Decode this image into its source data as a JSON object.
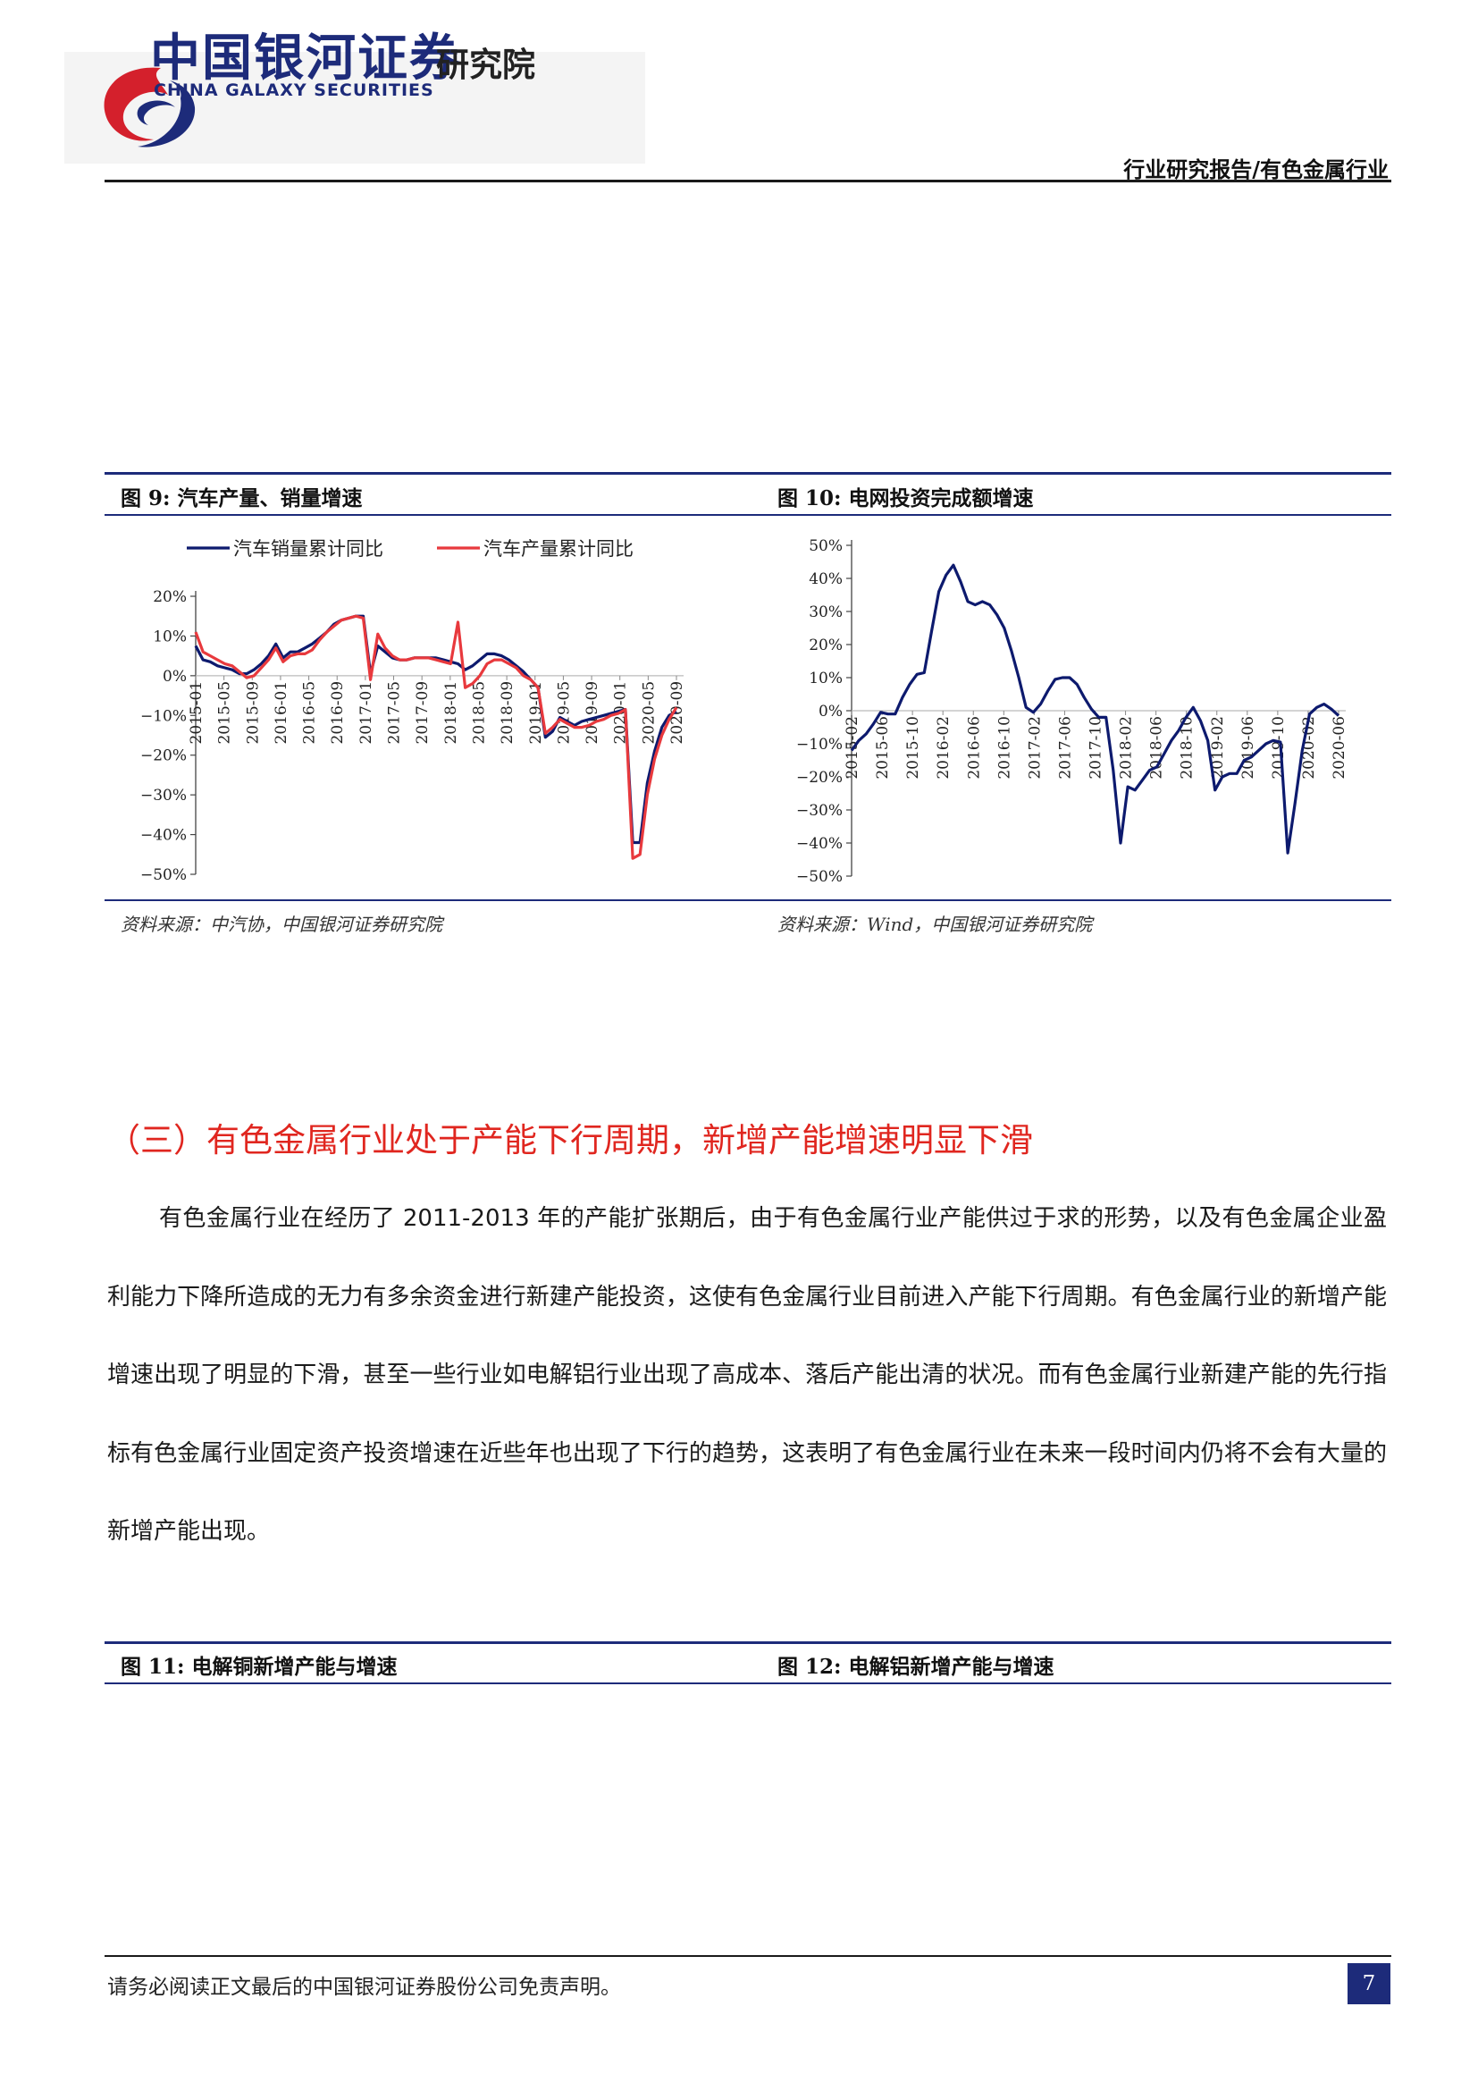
{
  "header": {
    "brand_cn": "中国银河证券",
    "brand_en": "CHINA GALAXY SECURITIES",
    "institute": "研究院",
    "report_type": "行业研究报告/有色金属行业"
  },
  "colors": {
    "brand_navy": "#1d2b7a",
    "brand_red": "#d4202c",
    "heading_red": "#e0261f",
    "series_navy": "#0d1a6e",
    "series_red": "#e8393d"
  },
  "figures": {
    "fig9": {
      "title": "图 9:  汽车产量、销量增速",
      "source": "资料来源：中汽协，中国银河证券研究院"
    },
    "fig10": {
      "title": "图 10:  电网投资完成额增速",
      "source": "资料来源：Wind，中国银河证券研究院"
    },
    "fig11": {
      "title": "图 11:  电解铜新增产能与增速"
    },
    "fig12": {
      "title": "图 12:  电解铝新增产能与增速"
    }
  },
  "chart_data": [
    {
      "type": "line",
      "ylim": [
        -50,
        20
      ],
      "yticks": [
        "20%",
        "10%",
        "0%",
        "−10%",
        "−20%",
        "−30%",
        "−40%",
        "−50%"
      ],
      "xticks": [
        "2015-01",
        "2015-05",
        "2015-09",
        "2016-01",
        "2016-05",
        "2016-09",
        "2017-01",
        "2017-05",
        "2017-09",
        "2018-01",
        "2018-05",
        "2018-09",
        "2019-01",
        "2019-05",
        "2019-09",
        "2020-01",
        "2020-05",
        "2020-09"
      ],
      "legend_position": "top",
      "series": [
        {
          "name": "汽车销量累计同比",
          "values": [
            7.5,
            4,
            3.5,
            2.5,
            2,
            1.5,
            0.5,
            0.5,
            1.5,
            3,
            5,
            8,
            4.5,
            6,
            6,
            7,
            8,
            9.5,
            11,
            13,
            14,
            14.5,
            15,
            15,
            0.5,
            7.5,
            6,
            4.5,
            4,
            4,
            4.5,
            4.5,
            4.5,
            4.5,
            4,
            3.5,
            3,
            1.5,
            2.5,
            4,
            5.5,
            5.5,
            5,
            4,
            2.5,
            1,
            -1,
            -3,
            -15.5,
            -14,
            -10.5,
            -11.5,
            -12.5,
            -11.5,
            -11,
            -10.5,
            -10,
            -9.5,
            -9,
            -8.5,
            -42,
            -42,
            -27,
            -19,
            -13,
            -10,
            -9
          ]
        },
        {
          "name": "汽车产量累计同比",
          "values": [
            11,
            6,
            5,
            4,
            3,
            2.5,
            1,
            -0.5,
            0,
            2,
            4,
            7,
            3.5,
            5,
            5.5,
            5.5,
            6.5,
            9,
            11,
            12.5,
            14,
            14.5,
            15,
            14.5,
            -1,
            10.5,
            7,
            5,
            4,
            4,
            4.5,
            4.5,
            4.5,
            4,
            3.5,
            3,
            13.5,
            -3,
            -2,
            0,
            3,
            4,
            4,
            3,
            2,
            0,
            -1,
            -3,
            -14.5,
            -13,
            -11,
            -12,
            -13,
            -13,
            -12.5,
            -11.5,
            -11,
            -10,
            -9.5,
            -8.5,
            -46,
            -45,
            -30,
            -21,
            -15,
            -11,
            -8
          ]
        }
      ]
    },
    {
      "type": "line",
      "ylim": [
        -50,
        50
      ],
      "yticks": [
        "50%",
        "40%",
        "30%",
        "20%",
        "10%",
        "0%",
        "−10%",
        "−20%",
        "−30%",
        "−40%",
        "−50%"
      ],
      "xticks": [
        "2015-02",
        "2015-06",
        "2015-10",
        "2016-02",
        "2016-06",
        "2016-10",
        "2017-02",
        "2017-06",
        "2017-10",
        "2018-02",
        "2018-06",
        "2018-10",
        "2019-02",
        "2019-06",
        "2019-10",
        "2020-02",
        "2020-06"
      ],
      "series": [
        {
          "name": "",
          "values": [
            -12,
            -9,
            -7,
            -4,
            -0.5,
            -1,
            -1,
            4,
            8,
            11,
            11.5,
            24,
            36,
            41,
            44,
            39,
            33,
            32,
            33,
            32,
            29,
            25,
            18,
            10,
            1,
            -0.5,
            2,
            6,
            9.5,
            10,
            10,
            8,
            4,
            0.5,
            -2,
            -2,
            -18,
            -40,
            -23,
            -24,
            -21,
            -18,
            -17,
            -13,
            -9,
            -6,
            -2,
            1,
            -3,
            -9,
            -24,
            -20,
            -19,
            -19,
            -15,
            -14,
            -12,
            -10,
            -9,
            -9.5,
            -43,
            -28,
            -12,
            -1,
            1,
            2,
            0.5,
            -1.5
          ]
        }
      ]
    }
  ],
  "section": {
    "heading": "（三）有色金属行业处于产能下行周期，新增产能增速明显下滑",
    "paragraph": "有色金属行业在经历了 2011-2013 年的产能扩张期后，由于有色金属行业产能供过于求的形势，以及有色金属企业盈利能力下降所造成的无力有多余资金进行新建产能投资，这使有色金属行业目前进入产能下行周期。有色金属行业的新增产能增速出现了明显的下滑，甚至一些行业如电解铝行业出现了高成本、落后产能出清的状况。而有色金属行业新建产能的先行指标有色金属行业固定资产投资增速在近些年也出现了下行的趋势，这表明了有色金属行业在未来一段时间内仍将不会有大量的新增产能出现。"
  },
  "footer": {
    "disclaimer": "请务必阅读正文最后的中国银河证券股份公司免责声明。",
    "page": "7"
  }
}
